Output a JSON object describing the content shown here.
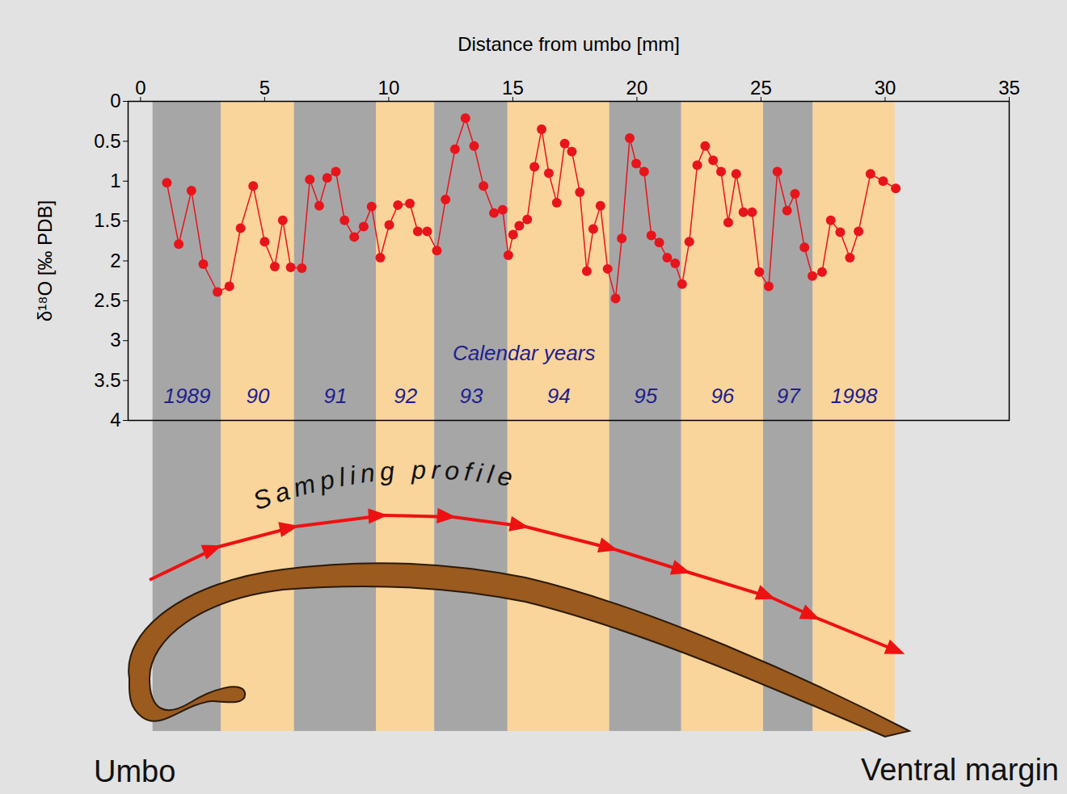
{
  "chart_data": {
    "type": "line",
    "x_label": "Distance from umbo [mm]",
    "y_label": "δ¹⁸O [‰ PDB]",
    "annotation": "Calendar years",
    "color": "#e8141c",
    "marker": "circle",
    "x": [
      1.06,
      1.54,
      2.05,
      2.53,
      3.1,
      3.58,
      4.03,
      4.54,
      5.0,
      5.41,
      5.73,
      6.05,
      6.5,
      6.82,
      7.2,
      7.52,
      7.87,
      8.22,
      8.61,
      8.99,
      9.31,
      9.66,
      10.02,
      10.37,
      10.85,
      11.17,
      11.55,
      11.94,
      12.29,
      12.67,
      13.09,
      13.44,
      13.82,
      14.24,
      14.59,
      14.82,
      15.01,
      15.26,
      15.58,
      15.87,
      16.16,
      16.45,
      16.77,
      17.09,
      17.38,
      17.7,
      17.98,
      18.24,
      18.53,
      18.82,
      19.14,
      19.39,
      19.71,
      19.97,
      20.29,
      20.58,
      20.9,
      21.22,
      21.54,
      21.82,
      22.11,
      22.43,
      22.75,
      23.07,
      23.39,
      23.68,
      24.0,
      24.29,
      24.64,
      24.93,
      25.31,
      25.66,
      26.05,
      26.37,
      26.75,
      27.07,
      27.46,
      27.81,
      28.19,
      28.58,
      28.93,
      29.41,
      29.92,
      30.43
    ],
    "values": [
      1.02,
      1.79,
      1.12,
      2.04,
      2.39,
      2.32,
      1.59,
      1.06,
      1.76,
      2.07,
      1.49,
      2.08,
      2.09,
      0.98,
      1.31,
      0.96,
      0.88,
      1.49,
      1.7,
      1.57,
      1.32,
      1.96,
      1.55,
      1.3,
      1.28,
      1.63,
      1.63,
      1.87,
      1.23,
      0.6,
      0.21,
      0.56,
      1.06,
      1.4,
      1.36,
      1.93,
      1.67,
      1.56,
      1.48,
      0.82,
      0.35,
      0.9,
      1.27,
      0.53,
      0.63,
      1.14,
      2.13,
      1.6,
      1.31,
      2.1,
      2.47,
      1.72,
      0.46,
      0.78,
      0.88,
      1.68,
      1.77,
      1.96,
      2.03,
      2.29,
      1.76,
      0.8,
      0.56,
      0.74,
      0.88,
      1.52,
      0.91,
      1.39,
      1.39,
      2.14,
      2.32,
      0.88,
      1.37,
      1.16,
      1.83,
      2.19,
      2.14,
      1.49,
      1.64,
      1.96,
      1.63,
      0.91,
      1.0,
      1.09
    ],
    "xlim": [
      -0.5,
      35
    ],
    "xticks": [
      0,
      5,
      10,
      15,
      20,
      25,
      30,
      35
    ],
    "ylim": [
      4,
      0
    ],
    "yticks": [
      0,
      0.5,
      1,
      1.5,
      2,
      2.5,
      3,
      3.5,
      4
    ],
    "bands": [
      {
        "label": "1989",
        "start": 0.5,
        "end": 3.25,
        "color": "#a6a6a6"
      },
      {
        "label": "90",
        "start": 3.25,
        "end": 6.2,
        "color": "#f9d49b"
      },
      {
        "label": "91",
        "start": 6.2,
        "end": 9.5,
        "color": "#a6a6a6"
      },
      {
        "label": "92",
        "start": 9.5,
        "end": 11.85,
        "color": "#f9d49b"
      },
      {
        "label": "93",
        "start": 11.85,
        "end": 14.8,
        "color": "#a6a6a6"
      },
      {
        "label": "94",
        "start": 14.8,
        "end": 18.9,
        "color": "#f9d49b"
      },
      {
        "label": "95",
        "start": 18.9,
        "end": 21.8,
        "color": "#a6a6a6"
      },
      {
        "label": "96",
        "start": 21.8,
        "end": 25.1,
        "color": "#f9d49b"
      },
      {
        "label": "97",
        "start": 25.1,
        "end": 27.1,
        "color": "#a6a6a6"
      },
      {
        "label": "1998",
        "start": 27.1,
        "end": 30.4,
        "color": "#f9d49b"
      }
    ]
  },
  "diagram": {
    "profile_label": "Sampling profile",
    "left_label": "Umbo",
    "right_label": "Ventral margin"
  }
}
